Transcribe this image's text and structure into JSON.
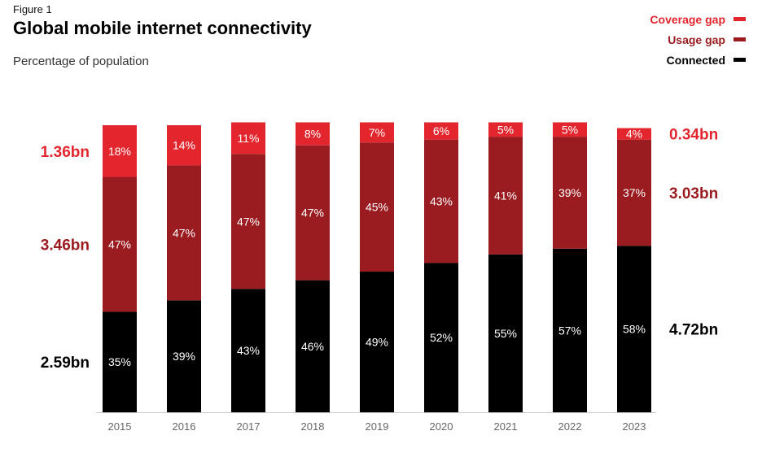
{
  "figure_label": "Figure 1",
  "title": "Global mobile internet connectivity",
  "subtitle": "Percentage of population",
  "colors": {
    "coverage_gap": "#e3262e",
    "usage_gap": "#9b1c20",
    "connected": "#000000"
  },
  "legend": [
    {
      "label": "Coverage gap",
      "key": "coverage_gap"
    },
    {
      "label": "Usage gap",
      "key": "usage_gap"
    },
    {
      "label": "Connected",
      "key": "connected"
    }
  ],
  "chart_data": {
    "type": "bar",
    "stacked": true,
    "title": "Global mobile internet connectivity",
    "subtitle": "Percentage of population",
    "categories": [
      "2015",
      "2016",
      "2017",
      "2018",
      "2019",
      "2020",
      "2021",
      "2022",
      "2023"
    ],
    "series": [
      {
        "name": "Connected",
        "key": "connected",
        "values": [
          35,
          39,
          43,
          46,
          49,
          52,
          55,
          57,
          58
        ]
      },
      {
        "name": "Usage gap",
        "key": "usage_gap",
        "values": [
          47,
          47,
          47,
          47,
          45,
          43,
          41,
          39,
          37
        ]
      },
      {
        "name": "Coverage gap",
        "key": "coverage_gap",
        "values": [
          18,
          14,
          11,
          8,
          7,
          6,
          5,
          5,
          4
        ]
      }
    ],
    "ylim": [
      0,
      100
    ],
    "unit": "%",
    "left_annotations": [
      {
        "series": "Coverage gap",
        "text": "1.36bn"
      },
      {
        "series": "Usage gap",
        "text": "3.46bn"
      },
      {
        "series": "Connected",
        "text": "2.59bn"
      }
    ],
    "right_annotations": [
      {
        "series": "Coverage gap",
        "text": "0.34bn"
      },
      {
        "series": "Usage gap",
        "text": "3.03bn"
      },
      {
        "series": "Connected",
        "text": "4.72bn"
      }
    ]
  }
}
